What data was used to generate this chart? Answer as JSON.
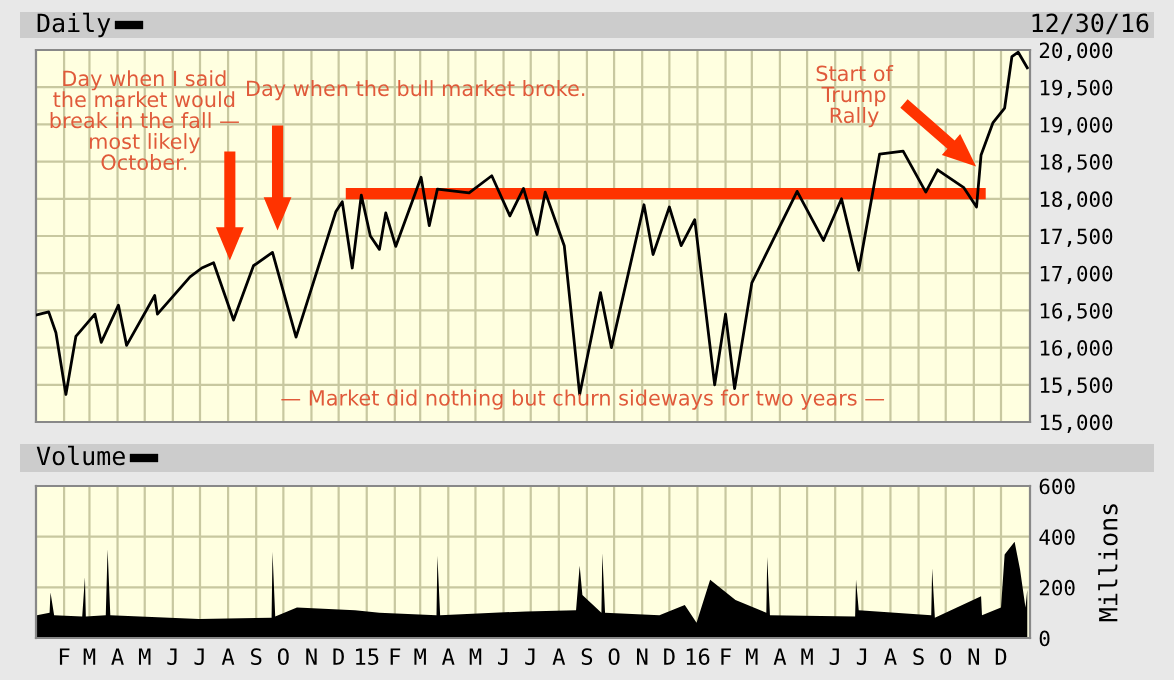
{
  "chart_data": [
    {
      "type": "line",
      "title": "Daily",
      "subtitle": "12/30/16",
      "series": [
        {
          "color": "#000000",
          "x": [
            "2014-01-02",
            "2014-01-15",
            "2014-01-23",
            "2014-02-03",
            "2014-02-14",
            "2014-03-07",
            "2014-03-14",
            "2014-04-02",
            "2014-04-11",
            "2014-05-12",
            "2014-05-15",
            "2014-06-20",
            "2014-07-03",
            "2014-07-16",
            "2014-08-07",
            "2014-08-29",
            "2014-09-19",
            "2014-10-15",
            "2014-11-28",
            "2014-12-05",
            "2014-12-16",
            "2014-12-26",
            "2015-01-05",
            "2015-01-15",
            "2015-01-22",
            "2015-02-02",
            "2015-03-02",
            "2015-03-11",
            "2015-03-20",
            "2015-04-24",
            "2015-05-19",
            "2015-06-08",
            "2015-06-23",
            "2015-07-08",
            "2015-07-17",
            "2015-08-07",
            "2015-08-24",
            "2015-09-16",
            "2015-09-28",
            "2015-11-03",
            "2015-11-13",
            "2015-12-01",
            "2015-12-14",
            "2015-12-29",
            "2016-01-20",
            "2016-02-01",
            "2016-02-11",
            "2016-03-01",
            "2016-04-20",
            "2016-05-19",
            "2016-06-08",
            "2016-06-27",
            "2016-07-20",
            "2016-08-15",
            "2016-09-09",
            "2016-09-22",
            "2016-10-21",
            "2016-11-04",
            "2016-11-09",
            "2016-11-22",
            "2016-12-05",
            "2016-12-13",
            "2016-12-20",
            "2016-12-30"
          ],
          "values": [
            16440,
            16480,
            16200,
            15370,
            16150,
            16450,
            16070,
            16570,
            16030,
            16700,
            16450,
            16950,
            17070,
            17140,
            16370,
            17100,
            17280,
            16140,
            17830,
            17960,
            17070,
            18050,
            17500,
            17320,
            17810,
            17360,
            18290,
            17640,
            18130,
            18080,
            18310,
            17770,
            18140,
            17520,
            18090,
            17370,
            15370,
            16740,
            16000,
            17920,
            17250,
            17890,
            17370,
            17720,
            15500,
            16450,
            15450,
            16870,
            18100,
            17440,
            18000,
            17040,
            18600,
            18640,
            18090,
            18390,
            18150,
            17890,
            18590,
            19020,
            19220,
            19910,
            19970,
            19760
          ]
        },
        {
          "type": "line",
          "color": "#ff3300",
          "x": [
            "2014-12-15",
            "2016-11-08"
          ],
          "values": [
            18070,
            18070
          ]
        }
      ],
      "xlim": [
        "2014-01-01",
        "2017-01-02"
      ],
      "xticks": [
        {
          "value": "2014-02-01",
          "label": null
        },
        {
          "value": "2014-03-01",
          "label": null
        },
        {
          "value": "2014-04-01",
          "label": null
        },
        {
          "value": "2014-05-01",
          "label": null
        },
        {
          "value": "2014-06-01",
          "label": null
        },
        {
          "value": "2014-07-01",
          "label": null
        },
        {
          "value": "2014-08-01",
          "label": null
        },
        {
          "value": "2014-09-01",
          "label": null
        },
        {
          "value": "2014-10-01",
          "label": null
        },
        {
          "value": "2014-11-01",
          "label": null
        },
        {
          "value": "2014-12-01",
          "label": null
        },
        {
          "value": "2015-01-01",
          "label": null
        },
        {
          "value": "2015-02-01",
          "label": null
        },
        {
          "value": "2015-03-01",
          "label": null
        },
        {
          "value": "2015-04-01",
          "label": null
        },
        {
          "value": "2015-05-01",
          "label": null
        },
        {
          "value": "2015-06-01",
          "label": null
        },
        {
          "value": "2015-07-01",
          "label": null
        },
        {
          "value": "2015-08-01",
          "label": null
        },
        {
          "value": "2015-09-01",
          "label": null
        },
        {
          "value": "2015-10-01",
          "label": null
        },
        {
          "value": "2015-11-01",
          "label": null
        },
        {
          "value": "2015-12-01",
          "label": null
        },
        {
          "value": "2016-01-01",
          "label": null
        },
        {
          "value": "2016-02-01",
          "label": null
        },
        {
          "value": "2016-03-01",
          "label": null
        },
        {
          "value": "2016-04-01",
          "label": null
        },
        {
          "value": "2016-05-01",
          "label": null
        },
        {
          "value": "2016-06-01",
          "label": null
        },
        {
          "value": "2016-07-01",
          "label": null
        },
        {
          "value": "2016-08-01",
          "label": null
        },
        {
          "value": "2016-09-01",
          "label": null
        },
        {
          "value": "2016-10-01",
          "label": null
        },
        {
          "value": "2016-11-01",
          "label": null
        },
        {
          "value": "2016-12-01",
          "label": null
        }
      ],
      "ylim": [
        15000,
        20000
      ],
      "yticks": [
        {
          "value": 15000,
          "label": "15,000"
        },
        {
          "value": 15500,
          "label": "15,500"
        },
        {
          "value": 16000,
          "label": "16,000"
        },
        {
          "value": 16500,
          "label": "16,500"
        },
        {
          "value": 17000,
          "label": "17,000"
        },
        {
          "value": 17500,
          "label": "17,500"
        },
        {
          "value": 18000,
          "label": "18,000"
        },
        {
          "value": 18500,
          "label": "18,500"
        },
        {
          "value": 19000,
          "label": "19,000"
        },
        {
          "value": 19500,
          "label": "19,500"
        },
        {
          "value": 20000,
          "label": "20,000"
        }
      ],
      "grid": true,
      "tick_labels": "y",
      "annotations": [
        "Day when I said\nthe market would\nbreak in the fall —\nmost likely\nOctober.",
        "Day when the bull market broke.",
        "Start of\nTrump\nRally",
        "— Market did nothing but churn sideways for two years —"
      ]
    },
    {
      "type": "area",
      "title": "Volume",
      "ylabel": "Millions",
      "series": [
        {
          "color": "#000000",
          "x": [
            "2014-01-02",
            "2014-01-16",
            "2014-01-17",
            "2014-01-21",
            "2014-02-21",
            "2014-02-24",
            "2014-02-25",
            "2014-03-19",
            "2014-03-21",
            "2014-03-24",
            "2014-06-30",
            "2014-09-18",
            "2014-09-19",
            "2014-09-22",
            "2014-10-16",
            "2014-12-19",
            "2015-01-15",
            "2015-03-19",
            "2015-03-20",
            "2015-03-23",
            "2015-06-26",
            "2015-08-20",
            "2015-08-24",
            "2015-08-27",
            "2015-09-17",
            "2015-09-18",
            "2015-09-21",
            "2015-11-20",
            "2015-12-18",
            "2015-12-31",
            "2016-01-15",
            "2016-02-12",
            "2016-03-17",
            "2016-03-18",
            "2016-03-21",
            "2016-06-23",
            "2016-06-24",
            "2016-06-27",
            "2016-09-15",
            "2016-09-16",
            "2016-09-19",
            "2016-11-09",
            "2016-11-10",
            "2016-12-01",
            "2016-12-05",
            "2016-12-16",
            "2016-12-22",
            "2016-12-28",
            "2016-12-30"
          ],
          "values": [
            90,
            100,
            180,
            90,
            85,
            240,
            85,
            90,
            350,
            90,
            75,
            80,
            340,
            85,
            120,
            110,
            100,
            90,
            325,
            90,
            105,
            110,
            285,
            170,
            100,
            335,
            100,
            90,
            130,
            60,
            230,
            150,
            100,
            320,
            90,
            85,
            230,
            110,
            90,
            275,
            80,
            165,
            90,
            120,
            330,
            380,
            270,
            120,
            190
          ]
        }
      ],
      "xlim": [
        "2014-01-01",
        "2017-01-02"
      ],
      "xticks": [
        {
          "value": "2014-02-01",
          "label": "F"
        },
        {
          "value": "2014-03-01",
          "label": "M"
        },
        {
          "value": "2014-04-01",
          "label": "A"
        },
        {
          "value": "2014-05-01",
          "label": "M"
        },
        {
          "value": "2014-06-01",
          "label": "J"
        },
        {
          "value": "2014-07-01",
          "label": "J"
        },
        {
          "value": "2014-08-01",
          "label": "A"
        },
        {
          "value": "2014-09-01",
          "label": "S"
        },
        {
          "value": "2014-10-01",
          "label": "O"
        },
        {
          "value": "2014-11-01",
          "label": "N"
        },
        {
          "value": "2014-12-01",
          "label": "D"
        },
        {
          "value": "2015-01-01",
          "label": "15"
        },
        {
          "value": "2015-02-01",
          "label": "F"
        },
        {
          "value": "2015-03-01",
          "label": "M"
        },
        {
          "value": "2015-04-01",
          "label": "A"
        },
        {
          "value": "2015-05-01",
          "label": "M"
        },
        {
          "value": "2015-06-01",
          "label": "J"
        },
        {
          "value": "2015-07-01",
          "label": "J"
        },
        {
          "value": "2015-08-01",
          "label": "A"
        },
        {
          "value": "2015-09-01",
          "label": "S"
        },
        {
          "value": "2015-10-01",
          "label": "O"
        },
        {
          "value": "2015-11-01",
          "label": "N"
        },
        {
          "value": "2015-12-01",
          "label": "D"
        },
        {
          "value": "2016-01-01",
          "label": "16"
        },
        {
          "value": "2016-02-01",
          "label": "F"
        },
        {
          "value": "2016-03-01",
          "label": "M"
        },
        {
          "value": "2016-04-01",
          "label": "A"
        },
        {
          "value": "2016-05-01",
          "label": "M"
        },
        {
          "value": "2016-06-01",
          "label": "J"
        },
        {
          "value": "2016-07-01",
          "label": "J"
        },
        {
          "value": "2016-08-01",
          "label": "A"
        },
        {
          "value": "2016-09-01",
          "label": "S"
        },
        {
          "value": "2016-10-01",
          "label": "O"
        },
        {
          "value": "2016-11-01",
          "label": "N"
        },
        {
          "value": "2016-12-01",
          "label": "D"
        }
      ],
      "ylim": [
        0,
        600
      ],
      "yticks": [
        0,
        200,
        400,
        600
      ],
      "grid": true
    }
  ]
}
